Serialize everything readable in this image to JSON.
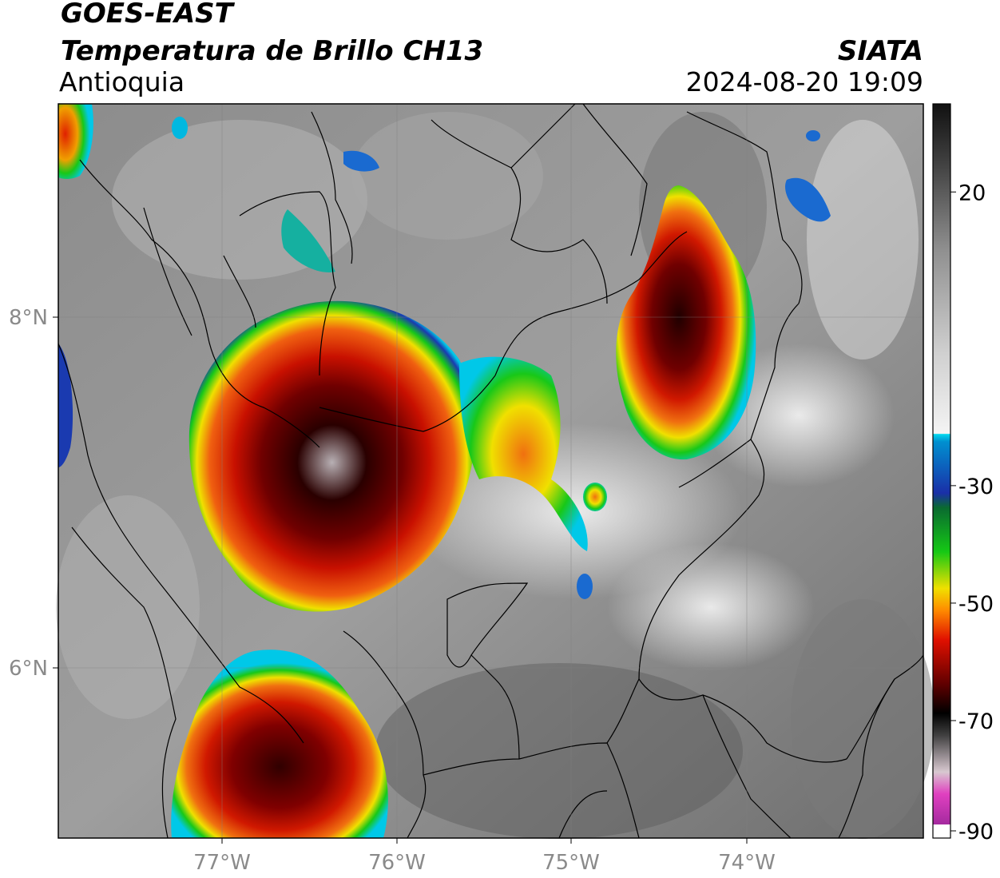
{
  "header": {
    "satellite": "GOES-EAST",
    "product": "Temperatura de Brillo CH13",
    "region": "Antioquia",
    "agency": "SIATA",
    "datetime": "2024-08-20 19:09"
  },
  "map": {
    "lat_ticks": [
      {
        "label": "8°N",
        "value": 8
      },
      {
        "label": "6°N",
        "value": 6
      }
    ],
    "lon_ticks": [
      {
        "label": "77°W",
        "value": -77
      },
      {
        "label": "76°W",
        "value": -76
      },
      {
        "label": "75°W",
        "value": -75
      },
      {
        "label": "74°W",
        "value": -74
      }
    ],
    "gridlines": true
  },
  "colorbar": {
    "ticks": [
      "20",
      "-30",
      "-50",
      "-70",
      "-90"
    ],
    "tick_values": [
      20,
      -30,
      -50,
      -70,
      -90
    ],
    "range": [
      -90,
      35
    ],
    "colors": {
      "warm_top": "#111111",
      "cold_white": "#f4f4f4",
      "cyan": "#00d8ee",
      "blue": "#1a2fa8",
      "green": "#15c815",
      "yellow": "#f0f000",
      "orange": "#ff8a00",
      "red": "#e01000",
      "dark_red": "#5a0000",
      "black": "#000000",
      "magenta": "#e040c0",
      "purple": "#8a2090"
    }
  }
}
